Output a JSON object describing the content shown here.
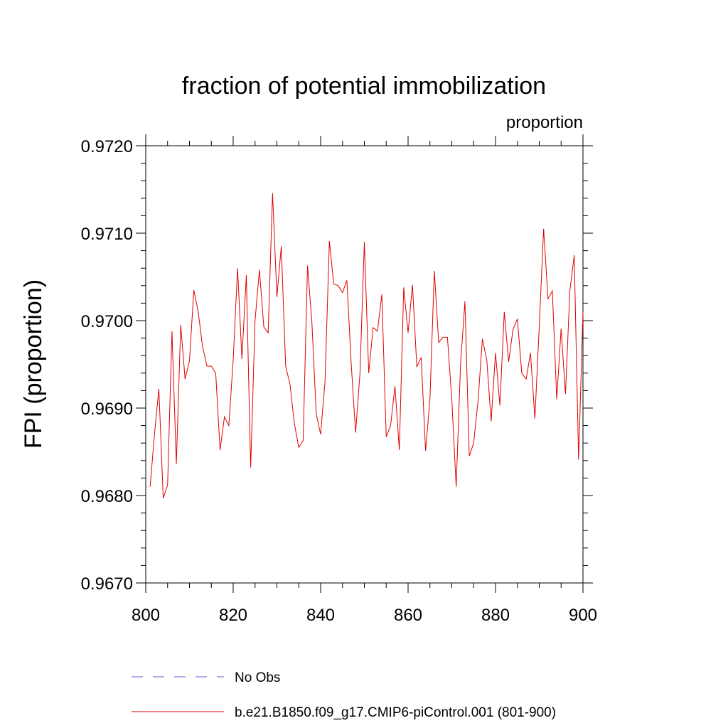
{
  "chart_data": {
    "type": "line",
    "title": "fraction of potential immobilization",
    "units_label": "proportion",
    "xlabel": "",
    "ylabel": "FPI  (proportion)",
    "xlim": [
      800,
      900
    ],
    "ylim": [
      0.967,
      0.972
    ],
    "x_ticks": [
      800,
      820,
      840,
      860,
      880,
      900
    ],
    "x_tick_labels": [
      "800",
      "820",
      "840",
      "860",
      "880",
      "900"
    ],
    "y_ticks": [
      0.967,
      0.968,
      0.969,
      0.97,
      0.971,
      0.972
    ],
    "y_tick_labels": [
      "0.9670",
      "0.9680",
      "0.9690",
      "0.9700",
      "0.9710",
      "0.9720"
    ],
    "series": [
      {
        "name": "b.e21.B1850.f09_g17.CMIP6-piControl.001 (801-900)",
        "color": "#e00000",
        "style": "solid",
        "x_start": 801,
        "values": [
          0.9681,
          0.9687,
          0.96922,
          0.96797,
          0.96812,
          0.96988,
          0.96836,
          0.96995,
          0.96933,
          0.96954,
          0.97035,
          0.9701,
          0.9697,
          0.96948,
          0.96948,
          0.9694,
          0.96852,
          0.9689,
          0.9688,
          0.96955,
          0.9706,
          0.96956,
          0.97052,
          0.96832,
          0.97,
          0.97058,
          0.96993,
          0.96986,
          0.97146,
          0.97027,
          0.97085,
          0.96948,
          0.96927,
          0.96882,
          0.96855,
          0.96863,
          0.97063,
          0.96998,
          0.96893,
          0.9687,
          0.9693,
          0.97091,
          0.97042,
          0.9704,
          0.97032,
          0.97046,
          0.9695,
          0.96872,
          0.9694,
          0.9709,
          0.9694,
          0.96992,
          0.96988,
          0.9703,
          0.96867,
          0.9688,
          0.96925,
          0.96852,
          0.97038,
          0.96986,
          0.97041,
          0.96947,
          0.96958,
          0.96851,
          0.9691,
          0.97057,
          0.96975,
          0.96981,
          0.96981,
          0.9691,
          0.9681,
          0.9695,
          0.97022,
          0.96845,
          0.9686,
          0.96908,
          0.96979,
          0.96955,
          0.96885,
          0.96963,
          0.96903,
          0.9701,
          0.96953,
          0.9699,
          0.97002,
          0.9694,
          0.96933,
          0.96963,
          0.96888,
          0.96993,
          0.97105,
          0.97025,
          0.97034,
          0.9691,
          0.96991,
          0.96916,
          0.97034,
          0.97075,
          0.96841,
          0.9701
        ]
      }
    ],
    "legend": [
      {
        "label": "No Obs",
        "color": "#6a5acd",
        "style": "dashed"
      },
      {
        "label": "b.e21.B1850.f09_g17.CMIP6-piControl.001 (801-900)",
        "color": "#e00000",
        "style": "solid"
      }
    ]
  }
}
